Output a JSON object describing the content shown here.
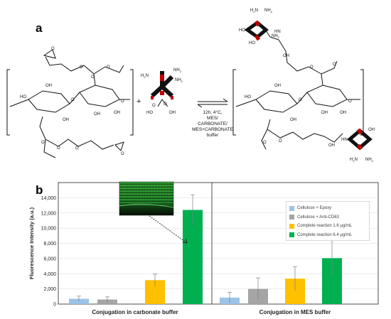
{
  "panel_a": {
    "letter": "a",
    "plus": "+",
    "conditions": [
      "12h, 4°C,",
      "MES/",
      "CARBONATE/",
      "MES+CARBONATE",
      "buffer"
    ],
    "atoms": {
      "oh": "OH",
      "o": "O",
      "ho": "HO",
      "nh2": "NH",
      "h2n": "H",
      "n": "N",
      "hn": "HN",
      "h": "H",
      "sub2": "2"
    }
  },
  "panel_b": {
    "letter": "b"
  },
  "chart_data": {
    "type": "bar",
    "ylabel": "Fluorescence Intensity (a.u.)",
    "ylim": [
      0,
      16000
    ],
    "yticks": [
      "0",
      "2,000",
      "4,000",
      "6,000",
      "8,000",
      "10,000",
      "12,000",
      "14,000"
    ],
    "grid": true,
    "legend_position": "top-right",
    "groups": [
      {
        "label": "Conjugation in carbonate buffer",
        "values": [
          700,
          600,
          3150,
          12400
        ],
        "errors": [
          350,
          350,
          800,
          2000
        ]
      },
      {
        "label": "Conjugation in MES buffer",
        "values": [
          850,
          2000,
          3350,
          6050
        ],
        "errors": [
          700,
          1450,
          1550,
          2300
        ]
      }
    ],
    "series": [
      {
        "name": "Cellulose + Epoxy",
        "color": "#9dc3e6"
      },
      {
        "name": "Cellulose + Anti-CD63",
        "color": "#a5a5a5"
      },
      {
        "name": "Complete reaction 1.6 μg/mL",
        "color": "#ffc000"
      },
      {
        "name": "Complete reaction 6.4 μg/mL",
        "color": "#00b050"
      }
    ]
  }
}
